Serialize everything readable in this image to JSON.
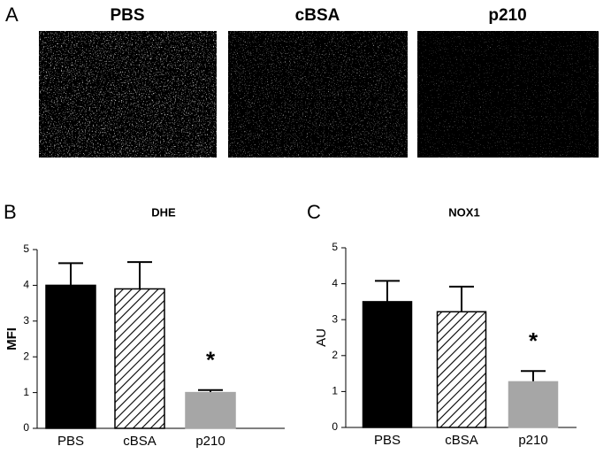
{
  "panel_a": {
    "label": "A",
    "images": [
      {
        "label": "PBS"
      },
      {
        "label": "cBSA"
      },
      {
        "label": "p210"
      }
    ]
  },
  "chart_data": [
    {
      "type": "bar",
      "panel_label": "B",
      "title": "DHE",
      "ylabel": "MFI",
      "ylabel_bold": true,
      "categories": [
        "PBS",
        "cBSA",
        "p210"
      ],
      "values": [
        4.0,
        3.9,
        1.0
      ],
      "errors": [
        0.62,
        0.75,
        0.07
      ],
      "colors": [
        "#000000",
        "#000000",
        "#a6a6a6"
      ],
      "hatch": [
        false,
        true,
        false
      ],
      "ylim": [
        0,
        5
      ],
      "yticks": [
        0,
        1,
        2,
        3,
        4,
        5
      ],
      "annotation": "*"
    },
    {
      "type": "bar",
      "panel_label": "C",
      "title": "NOX1",
      "ylabel": "AU",
      "ylabel_bold": false,
      "categories": [
        "PBS",
        "cBSA",
        "p210"
      ],
      "values": [
        3.5,
        3.22,
        1.27
      ],
      "errors": [
        0.58,
        0.7,
        0.3
      ],
      "colors": [
        "#000000",
        "#000000",
        "#a6a6a6"
      ],
      "hatch": [
        false,
        true,
        false
      ],
      "ylim": [
        0,
        5
      ],
      "yticks": [
        0,
        1,
        2,
        3,
        4,
        5
      ],
      "annotation": "*"
    }
  ]
}
